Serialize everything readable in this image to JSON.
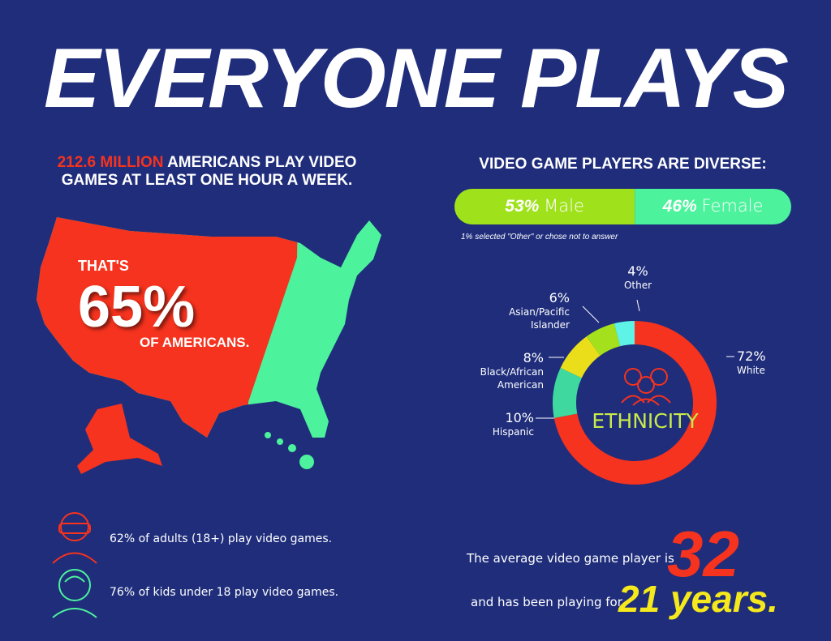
{
  "title": "EVERYONE PLAYS",
  "players": {
    "highlight": "212.6 MILLION",
    "text": "AMERICANS PLAY VIDEO GAMES AT LEAST ONE HOUR A WEEK."
  },
  "map": {
    "lead": "THAT'S",
    "value": "65%",
    "tail": "OF AMERICANS."
  },
  "stats": [
    "62% of adults (18+) play video games.",
    "76% of kids under 18 play video games."
  ],
  "gender": {
    "title": "VIDEO GAME PLAYERS ARE DIVERSE:",
    "categories": [
      "Male",
      "Female"
    ],
    "values": [
      53,
      46
    ],
    "value_labels": [
      "53%",
      "46%"
    ],
    "colors": [
      "#9fe21c",
      "#4cf29c"
    ],
    "note": "1% selected \"Other\" or chose not to answer"
  },
  "ethnicity": {
    "type": "donut",
    "title": "ETHNICITY",
    "categories": [
      "White",
      "Hispanic",
      "Black/African American",
      "Asian/Pacific Islander",
      "Other"
    ],
    "values": [
      72,
      10,
      8,
      6,
      4
    ],
    "value_labels": [
      "72%",
      "10%",
      "8%",
      "6%",
      "4%"
    ],
    "colors": [
      "#f5331e",
      "#3fd9a0",
      "#eadd1a",
      "#a4e01c",
      "#5ef3e6"
    ]
  },
  "age": {
    "text": "The average video game player is",
    "value": "32",
    "tenure_text": "and has been playing for",
    "tenure": "21 years."
  }
}
